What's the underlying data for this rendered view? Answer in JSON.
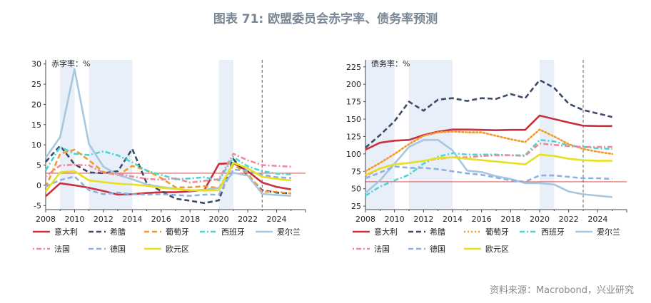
{
  "title": "图表 71: 欧盟委员会赤字率、债务率预测",
  "source": "资料来源：Macrobond，兴业研究",
  "colors": {
    "意大利": "#c8303f",
    "希腊": "#3b4a66",
    "葡萄牙": "#f39a2a",
    "西班牙": "#47d8d2",
    "爱尔兰": "#a7c6e0",
    "法国": "#f08a9a",
    "德国": "#8fb1e2",
    "欧元区": "#e5e020",
    "refline": "#e06060",
    "shade": "#e8eff8"
  },
  "chart_data": [
    {
      "type": "line",
      "annotation": "赤字率：%",
      "xlim": [
        2008,
        2026
      ],
      "ylim": [
        -6,
        31
      ],
      "xticks": [
        2008,
        2010,
        2012,
        2014,
        2016,
        2018,
        2020,
        2022,
        2024
      ],
      "yticks": [
        -5,
        0,
        5,
        10,
        15,
        20,
        25,
        30
      ],
      "shaded_ranges": [
        [
          2009,
          2010
        ],
        [
          2011,
          2014
        ],
        [
          2020,
          2021
        ]
      ],
      "reference_line_y": 3,
      "forecast_line_x": 2023,
      "x": [
        2008,
        2009,
        2010,
        2011,
        2012,
        2013,
        2014,
        2015,
        2016,
        2017,
        2018,
        2019,
        2020,
        2021,
        2022,
        2023,
        2024,
        2025
      ],
      "series": [
        {
          "name": "意大利",
          "style": "solid",
          "values": [
            -2.7,
            0.5,
            0,
            -0.6,
            -1.4,
            -2.3,
            -2.2,
            -1.9,
            -1.7,
            -1.7,
            -1.5,
            -1.1,
            5.3,
            5.5,
            3.5,
            0.7,
            -0.4,
            -1
          ]
        },
        {
          "name": "希腊",
          "style": "dash",
          "values": [
            5.8,
            9.8,
            5.2,
            3.2,
            3,
            3.5,
            9,
            0.5,
            -1.4,
            -3.3,
            -3.8,
            -4.4,
            -3.7,
            6.5,
            2.4,
            -1.2,
            -1.8,
            -2
          ]
        },
        {
          "name": "葡萄牙",
          "style": "dash",
          "values": [
            -0.5,
            7.8,
            8.8,
            6.2,
            3.3,
            2.5,
            4.8,
            3.7,
            1.8,
            -0.5,
            -0.5,
            -0.2,
            -0.7,
            5.1,
            2.9,
            -1.6,
            -1.6,
            -2
          ]
        },
        {
          "name": "西班牙",
          "style": "dashdot",
          "values": [
            3.7,
            9.5,
            7.8,
            7.5,
            8.4,
            7.4,
            5.7,
            3.6,
            2.6,
            1.5,
            1.7,
            2,
            1.2,
            7,
            4.7,
            3.5,
            2.9,
            2.7
          ]
        },
        {
          "name": "爱尔兰",
          "style": "solid",
          "values": [
            6.8,
            11.9,
            28.7,
            10.2,
            4.6,
            2.6,
            1.5,
            0.2,
            -0.4,
            -0.8,
            -1.3,
            -1.1,
            -0.6,
            3.1,
            2.4,
            -2.1,
            -2.4,
            -2.6
          ]
        },
        {
          "name": "法国",
          "style": "dotdash",
          "values": [
            2.2,
            4.9,
            5.1,
            4.9,
            3.1,
            2.8,
            2.2,
            1.6,
            1.4,
            1.7,
            0.7,
            1.1,
            1.5,
            7.8,
            6.2,
            5,
            4.8,
            4.6
          ]
        },
        {
          "name": "德国",
          "style": "dash",
          "values": [
            -0.3,
            1.3,
            2.2,
            -1.2,
            -2.2,
            -1.8,
            -2.2,
            -2.3,
            -2.2,
            -2.4,
            -2.6,
            -2.3,
            -2.3,
            3.9,
            3.6,
            2.6,
            2,
            1.8
          ]
        },
        {
          "name": "欧元区",
          "style": "solid",
          "values": [
            -1.5,
            3.2,
            3.5,
            1.2,
            0.8,
            0.4,
            0.2,
            -0.1,
            -0.6,
            -0.9,
            -1.2,
            -1.3,
            -1.2,
            5.6,
            4.2,
            2.1,
            1.6,
            1.2
          ]
        }
      ]
    },
    {
      "type": "line",
      "annotation": "债务率：%",
      "xlim": [
        2008,
        2026
      ],
      "ylim": [
        20,
        235
      ],
      "xticks": [
        2008,
        2010,
        2012,
        2014,
        2016,
        2018,
        2020,
        2022,
        2024
      ],
      "yticks": [
        25,
        50,
        75,
        100,
        125,
        150,
        175,
        200,
        225
      ],
      "shaded_ranges": [
        [
          2008,
          2010
        ],
        [
          2011,
          2014
        ],
        [
          2020,
          2021
        ]
      ],
      "reference_line_y": 60,
      "forecast_line_x": 2023,
      "x": [
        2008,
        2009,
        2010,
        2011,
        2012,
        2013,
        2014,
        2015,
        2016,
        2017,
        2018,
        2019,
        2020,
        2021,
        2022,
        2023,
        2024,
        2025
      ],
      "series": [
        {
          "name": "意大利",
          "style": "solid",
          "values": [
            106,
            116,
            119,
            120,
            127,
            132,
            135,
            135,
            134.5,
            134,
            134.5,
            134.5,
            155,
            150,
            145,
            140.5,
            140,
            140
          ]
        },
        {
          "name": "希腊",
          "style": "dash",
          "values": [
            109,
            127,
            147,
            175,
            162,
            178,
            180,
            176,
            180,
            179,
            186,
            180,
            206,
            195,
            172,
            163,
            158,
            153
          ]
        },
        {
          "name": "葡萄牙",
          "style": "dot",
          "values": [
            75,
            87,
            100,
            114,
            126,
            131,
            132,
            131,
            131,
            126,
            121,
            117,
            135,
            125,
            114,
            107,
            103,
            100
          ]
        },
        {
          "name": "西班牙",
          "style": "dashdot",
          "values": [
            40,
            53,
            62,
            70,
            86,
            96,
            101,
            99,
            99,
            99,
            98,
            98,
            120,
            118,
            112,
            110,
            108,
            107
          ]
        },
        {
          "name": "爱尔兰",
          "style": "solid",
          "values": [
            44,
            62,
            86,
            110,
            120,
            120,
            105,
            76,
            74,
            68,
            64,
            58,
            58,
            56,
            46,
            42,
            40,
            38
          ]
        },
        {
          "name": "法国",
          "style": "dotdash",
          "values": [
            68,
            79,
            85,
            87,
            90,
            93,
            95,
            95,
            97,
            98,
            98,
            97,
            115,
            113,
            111,
            110,
            110,
            110
          ]
        },
        {
          "name": "德国",
          "style": "dash",
          "values": [
            65,
            73,
            82,
            80,
            80,
            78,
            75,
            72,
            70,
            66,
            62,
            60,
            69,
            69,
            67,
            65,
            65,
            64
          ]
        },
        {
          "name": "欧元区",
          "style": "solid",
          "values": [
            70,
            79,
            85,
            87,
            90,
            94,
            95,
            93,
            91,
            89,
            87,
            85,
            99,
            97,
            93,
            91,
            90,
            90
          ]
        }
      ]
    }
  ],
  "legend": {
    "row1": [
      "意大利",
      "希腊",
      "葡萄牙",
      "西班牙",
      "爱尔兰"
    ],
    "row2": [
      "法国",
      "德国",
      "欧元区"
    ]
  }
}
